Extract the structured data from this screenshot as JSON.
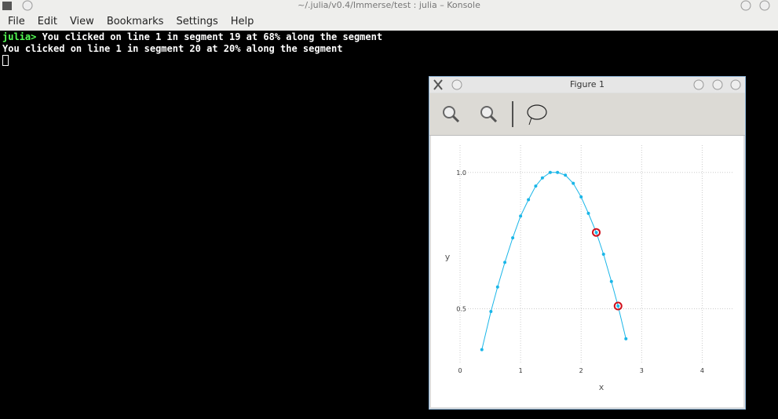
{
  "window": {
    "title": "~/.julia/v0.4/Immerse/test : julia – Konsole",
    "menu": [
      "File",
      "Edit",
      "View",
      "Bookmarks",
      "Settings",
      "Help"
    ]
  },
  "terminal": {
    "lines": [
      {
        "prompt": "julia>",
        "text": " You clicked on line 1 in segment 19 at 68% along the segment"
      },
      {
        "text": "You clicked on line 1 in segment 20 at 20% along the segment"
      }
    ]
  },
  "figure": {
    "title": "Figure 1"
  },
  "chart_data": {
    "type": "line",
    "color": "#1ab6e8",
    "highlight_color": "#d0101c",
    "x": [
      0.36,
      0.51,
      0.62,
      0.74,
      0.87,
      1.0,
      1.13,
      1.25,
      1.36,
      1.49,
      1.61,
      1.74,
      1.87,
      2.0,
      2.12,
      2.25,
      2.37,
      2.5,
      2.61,
      2.74
    ],
    "values": [
      0.35,
      0.49,
      0.58,
      0.67,
      0.76,
      0.84,
      0.9,
      0.95,
      0.98,
      1.0,
      1.0,
      0.99,
      0.96,
      0.91,
      0.85,
      0.78,
      0.7,
      0.6,
      0.51,
      0.39
    ],
    "highlighted": [
      15,
      18
    ],
    "xlabel": "x",
    "ylabel": "y",
    "xlim": [
      0,
      4.5
    ],
    "ylim": [
      0.3,
      1.1
    ],
    "xticks": [
      0,
      1,
      2,
      3,
      4
    ],
    "yticks": [
      {
        "value": 0.5,
        "label": "0.5"
      },
      {
        "value": 1,
        "label": "1.0"
      }
    ],
    "grid": true
  }
}
